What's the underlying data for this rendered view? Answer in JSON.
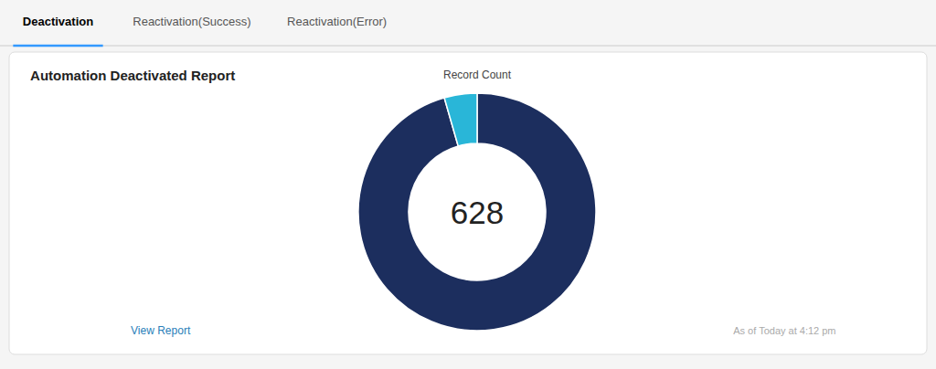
{
  "chart_data": {
    "type": "pie",
    "title": "Automation Deactivated Report",
    "values": [
      600,
      28
    ],
    "colors": [
      "#1c2e5e",
      "#29b6d8"
    ],
    "annotations": [
      "628",
      "Record Count",
      "Deactivation",
      "Reactivation(Success)",
      "Reactivation(Error)",
      "View Report",
      "As of Today at 4:12 pm"
    ]
  }
}
